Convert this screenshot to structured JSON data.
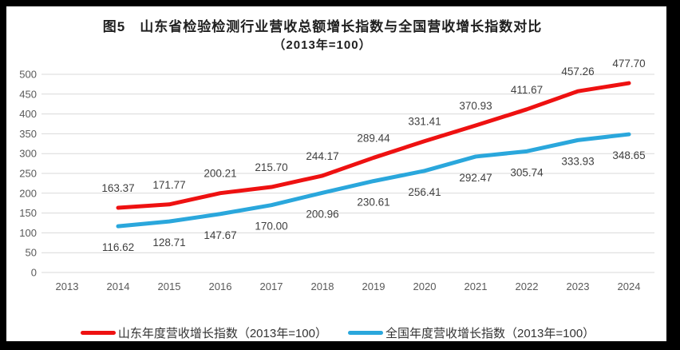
{
  "figure": {
    "frame_color": "#000000",
    "paper_color": "#ffffff"
  },
  "title": {
    "line1": "图5　山东省检验检测行业营收总额增长指数与全国营收增长指数对比",
    "line2": "（2013年=100）"
  },
  "chart_data": {
    "type": "line",
    "title": "图5 山东省检验检测行业营收总额增长指数与全国营收增长指数对比",
    "subtitle": "（2013年=100）",
    "categories": [
      "2013",
      "2014",
      "2015",
      "2016",
      "2017",
      "2018",
      "2019",
      "2020",
      "2021",
      "2022",
      "2023",
      "2024"
    ],
    "series": [
      {
        "name": "山东年度营收增长指数（2013年=100）",
        "color": "#ee1111",
        "start_index": 1,
        "values": [
          163.37,
          171.77,
          200.21,
          215.7,
          244.17,
          289.44,
          331.41,
          370.93,
          411.67,
          457.26,
          477.7
        ],
        "label_side": "above"
      },
      {
        "name": "全国年度营收增长指数（2013年=100）",
        "color": "#2aa7dc",
        "start_index": 1,
        "values": [
          116.62,
          128.71,
          147.67,
          170.0,
          200.96,
          230.61,
          256.41,
          292.47,
          305.74,
          333.93,
          348.65
        ],
        "label_side": "below"
      }
    ],
    "ylim": [
      0,
      500
    ],
    "ytick_step": 50,
    "yticks": [
      0,
      50,
      100,
      150,
      200,
      250,
      300,
      350,
      400,
      450,
      500
    ],
    "grid": "horizontal",
    "legend_position": "bottom",
    "value_label_format": "0.00"
  },
  "style": {
    "grid_color": "#d9d9d9",
    "axis_text_color": "#595959",
    "value_label_color": "#404040",
    "line_width": 5
  }
}
